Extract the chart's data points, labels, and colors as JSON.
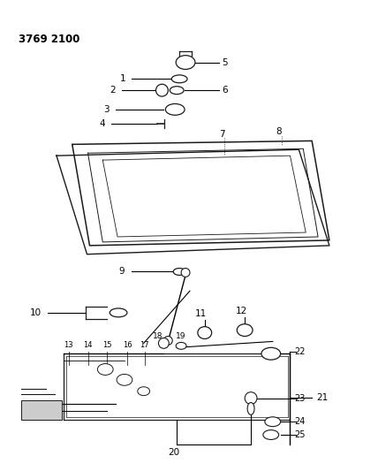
{
  "title": "3769 2100",
  "bg": "#ffffff",
  "lc": "#1a1a1a",
  "tc": "#000000",
  "fig_w": 4.28,
  "fig_h": 5.33,
  "dpi": 100
}
